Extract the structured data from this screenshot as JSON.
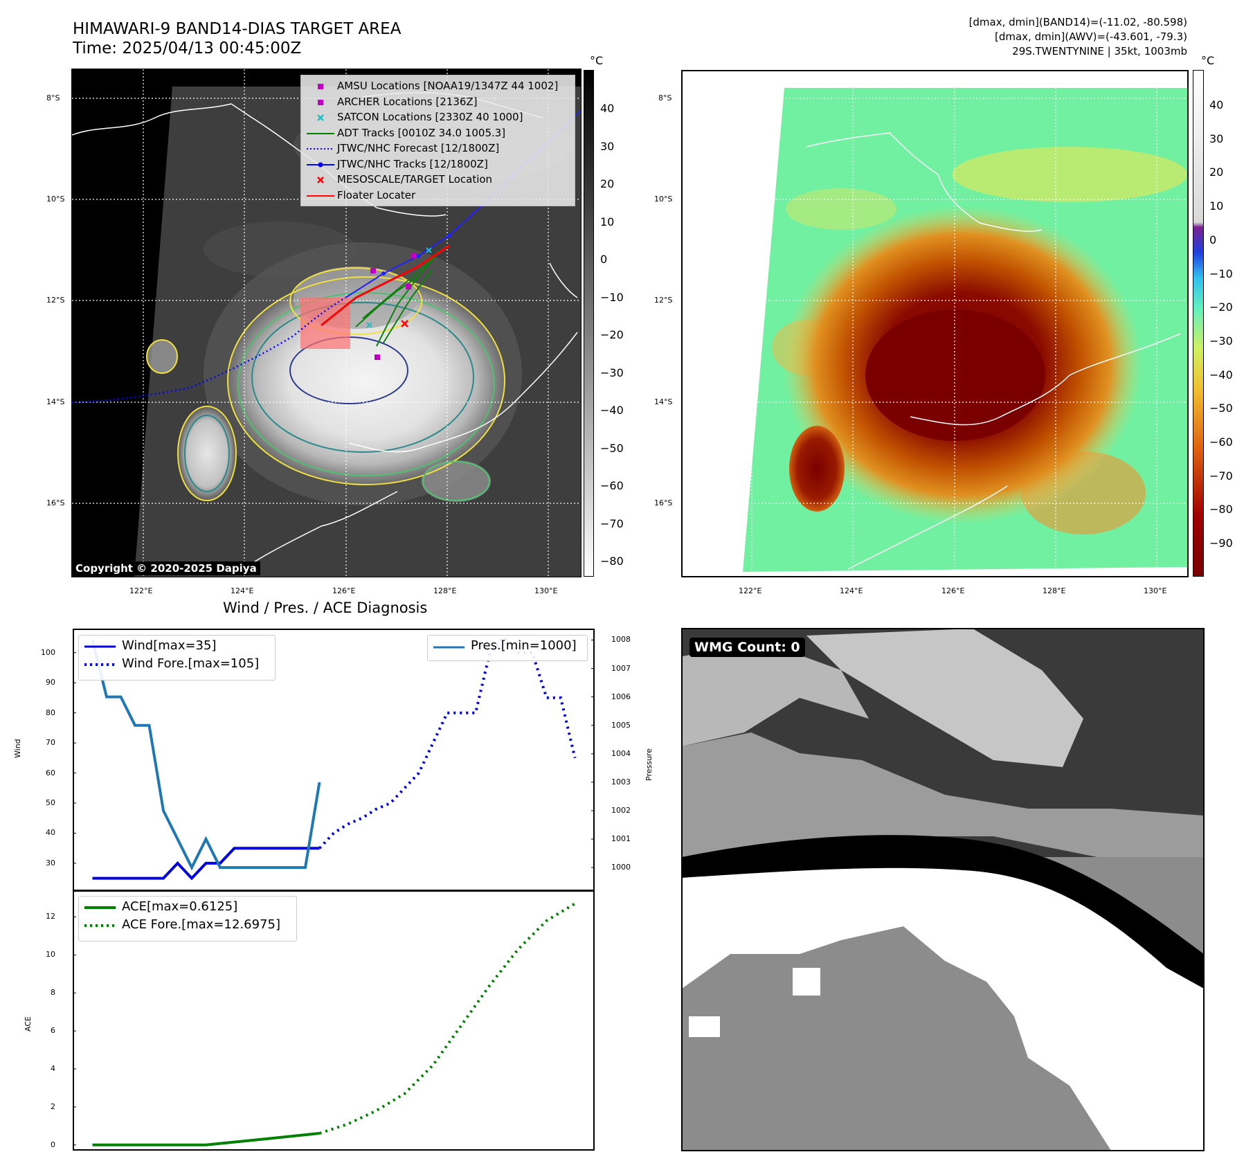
{
  "header": {
    "title_line1": "HIMAWARI-9 BAND14-DIAS TARGET AREA",
    "title_line2": "Time: 2025/04/13 00:45:00Z",
    "info_line1": "[dmax, dmin](BAND14)=(-11.02, -80.598)",
    "info_line2": "[dmax, dmin](AWV)=(-43.601, -79.3)",
    "info_line3": "29S.TWENTYNINE | 35kt, 1003mb"
  },
  "map_axes": {
    "lat_labels": [
      "8°S",
      "10°S",
      "12°S",
      "14°S",
      "16°S"
    ],
    "lon_labels": [
      "122°E",
      "124°E",
      "126°E",
      "128°E",
      "130°E"
    ]
  },
  "colorbar_left": {
    "unit": "°C",
    "ticks": [
      "40",
      "30",
      "20",
      "10",
      "0",
      "−10",
      "−20",
      "−30",
      "−40",
      "−50",
      "−60",
      "−70",
      "−80"
    ]
  },
  "colorbar_right": {
    "unit": "°C",
    "ticks": [
      "40",
      "30",
      "20",
      "10",
      "0",
      "−10",
      "−20",
      "−30",
      "−40",
      "−50",
      "−60",
      "−70",
      "−80",
      "−90"
    ]
  },
  "map_legend": [
    {
      "label": "AMSU Locations [NOAA19/1347Z 44 1002]",
      "symbol": "square",
      "color": "#c000c0"
    },
    {
      "label": "ARCHER Locations [2136Z]",
      "symbol": "square",
      "color": "#c000c0"
    },
    {
      "label": "SATCON Locations [2330Z 40 1000]",
      "symbol": "x",
      "color": "#20c0c0"
    },
    {
      "label": "ADT Tracks [0010Z 34.0 1005.3]",
      "symbol": "line",
      "color": "#008000"
    },
    {
      "label": "JTWC/NHC Forecast [12/1800Z]",
      "symbol": "dotted",
      "color": "#0000ff"
    },
    {
      "label": "JTWC/NHC Tracks [12/1800Z]",
      "symbol": "line-dot",
      "color": "#0000ff"
    },
    {
      "label": "MESOSCALE/TARGET Location",
      "symbol": "x",
      "color": "#ff0000"
    },
    {
      "label": "Floater Locater",
      "symbol": "line",
      "color": "#ff0000"
    }
  ],
  "copyright": "Copyright © 2020-2025 Dapiya",
  "wmg_label": "WMG Count: 0",
  "chart_data": [
    {
      "type": "line",
      "title": "Wind / Pres. / ACE Diagnosis",
      "ylabel": "Wind",
      "ylabel_right": "Pressure",
      "ylim": [
        21,
        108
      ],
      "ylim_right": [
        999.2,
        1008.4
      ],
      "yticks": [
        30,
        40,
        50,
        60,
        70,
        80,
        90,
        100
      ],
      "yticks_right": [
        1000,
        1001,
        1002,
        1003,
        1004,
        1005,
        1006,
        1007,
        1008
      ],
      "x_range": [
        0,
        36
      ],
      "series": [
        {
          "name": "Wind[max=35]",
          "axis": "left",
          "style": "solid",
          "color": "#0000e0",
          "x": [
            1,
            2,
            3,
            4,
            5,
            6,
            7,
            8,
            9,
            10,
            11,
            12,
            13,
            14,
            15,
            16,
            17
          ],
          "values": [
            25,
            25,
            25,
            25,
            25,
            25,
            30,
            25,
            30,
            30,
            35,
            35,
            35,
            35,
            35,
            35,
            35
          ]
        },
        {
          "name": "Wind Fore.[max=105]",
          "axis": "left",
          "style": "dotted",
          "color": "#0000e0",
          "x": [
            17,
            18,
            19,
            20,
            21,
            22,
            23,
            24,
            25,
            26,
            27,
            28,
            29,
            30,
            31,
            32,
            33,
            34,
            35
          ],
          "values": [
            35,
            40,
            43,
            45,
            48,
            50,
            55,
            60,
            70,
            80,
            80,
            80,
            100,
            105,
            100,
            100,
            85,
            85,
            65
          ]
        },
        {
          "name": "Pres.[min=1000]",
          "axis": "right",
          "style": "solid",
          "color": "#1f77b4",
          "x": [
            1,
            2,
            3,
            4,
            5,
            6,
            7,
            8,
            9,
            10,
            11,
            12,
            13,
            14,
            15,
            16,
            17
          ],
          "values": [
            1008,
            1006,
            1006,
            1005,
            1005,
            1002,
            1001,
            1000,
            1001,
            1000,
            1000,
            1000,
            1000,
            1000,
            1000,
            1000,
            1003
          ]
        }
      ]
    },
    {
      "type": "line",
      "ylabel": "ACE",
      "ylim": [
        -0.3,
        13.4
      ],
      "yticks": [
        0,
        2,
        4,
        6,
        8,
        10,
        12
      ],
      "x_range": [
        0,
        36
      ],
      "series": [
        {
          "name": "ACE[max=0.6125]",
          "style": "solid",
          "color": "#008000",
          "x": [
            1,
            5,
            9,
            13,
            17
          ],
          "values": [
            0,
            0,
            0,
            0.3,
            0.6125
          ]
        },
        {
          "name": "ACE Fore.[max=12.6975]",
          "style": "dotted",
          "color": "#008000",
          "x": [
            17,
            19,
            21,
            23,
            25,
            27,
            29,
            31,
            33,
            35
          ],
          "values": [
            0.6125,
            1.1,
            1.8,
            2.7,
            4.2,
            6.3,
            8.4,
            10.3,
            11.8,
            12.6975
          ]
        }
      ]
    }
  ]
}
